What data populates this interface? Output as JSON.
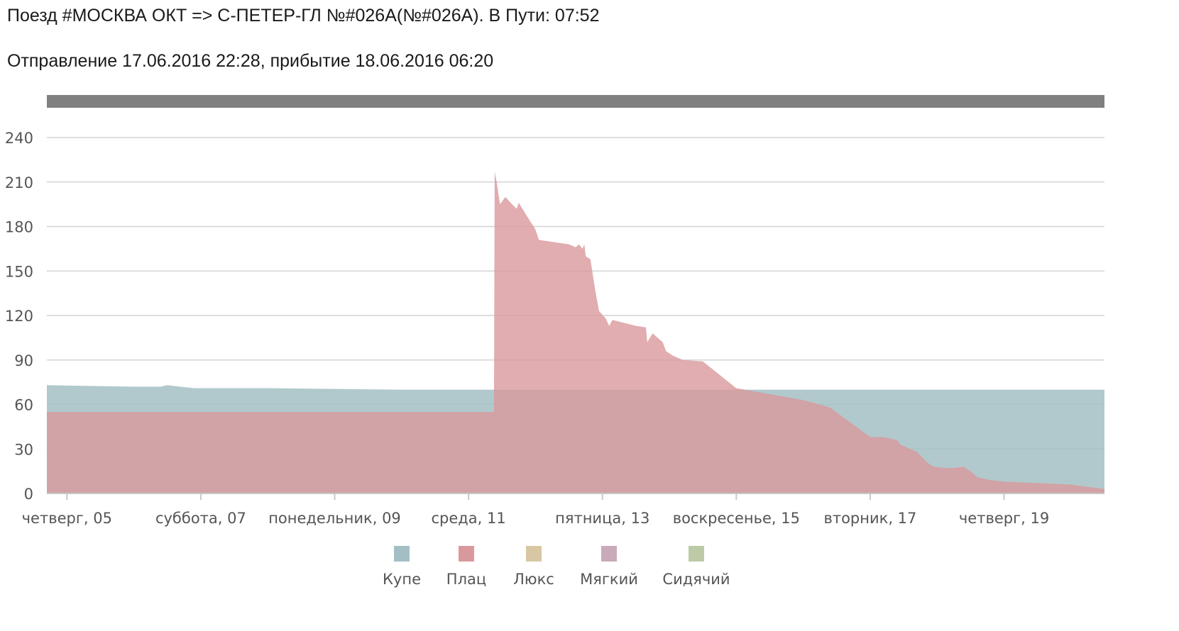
{
  "header": {
    "train_line": "Поезд #МОСКВА ОКТ => С-ПЕТЕР-ГЛ №#026А(№#026А). В Пути: 07:52",
    "schedule_line": "Отправление 17.06.2016 22:28, прибытие 18.06.2016 06:20"
  },
  "chart_data": {
    "type": "area",
    "x_unit": "days",
    "xlim": [
      4.7,
      20.5
    ],
    "ylim": [
      0,
      250
    ],
    "y_ticks": [
      0,
      30,
      60,
      90,
      120,
      150,
      180,
      210,
      240
    ],
    "x_ticks": [
      {
        "x": 5,
        "label": "четверг, 05"
      },
      {
        "x": 7,
        "label": "суббота, 07"
      },
      {
        "x": 9,
        "label": "понедельник, 09"
      },
      {
        "x": 11,
        "label": "среда, 11"
      },
      {
        "x": 13,
        "label": "пятница, 13"
      },
      {
        "x": 15,
        "label": "воскресенье, 15"
      },
      {
        "x": 17,
        "label": "вторник, 17"
      },
      {
        "x": 19,
        "label": "четверг, 19"
      }
    ],
    "grid": true,
    "legend_position": "bottom",
    "series": [
      {
        "name": "Купе",
        "color": "#a3bfc4",
        "points": [
          [
            4.7,
            73
          ],
          [
            6.0,
            72
          ],
          [
            6.4,
            72
          ],
          [
            6.5,
            73
          ],
          [
            6.9,
            71
          ],
          [
            8.0,
            71
          ],
          [
            10.0,
            70
          ],
          [
            11.4,
            70
          ],
          [
            12.0,
            70
          ],
          [
            13.0,
            70
          ],
          [
            14.0,
            70
          ],
          [
            15.0,
            70
          ],
          [
            16.0,
            70
          ],
          [
            17.0,
            70
          ],
          [
            18.0,
            70
          ],
          [
            19.0,
            70
          ],
          [
            20.5,
            70
          ]
        ]
      },
      {
        "name": "Плац",
        "color": "#d9999c",
        "points": [
          [
            4.7,
            55
          ],
          [
            11.38,
            55
          ],
          [
            11.39,
            217
          ],
          [
            11.42,
            210
          ],
          [
            11.47,
            195
          ],
          [
            11.55,
            200
          ],
          [
            11.65,
            195
          ],
          [
            11.72,
            192
          ],
          [
            11.75,
            196
          ],
          [
            11.9,
            185
          ],
          [
            12.0,
            178
          ],
          [
            12.05,
            171
          ],
          [
            12.5,
            168
          ],
          [
            12.6,
            166
          ],
          [
            12.65,
            168
          ],
          [
            12.7,
            165
          ],
          [
            12.73,
            168
          ],
          [
            12.75,
            160
          ],
          [
            12.82,
            158
          ],
          [
            12.9,
            135
          ],
          [
            12.95,
            123
          ],
          [
            13.05,
            118
          ],
          [
            13.1,
            113
          ],
          [
            13.15,
            117
          ],
          [
            13.5,
            113
          ],
          [
            13.65,
            112
          ],
          [
            13.67,
            102
          ],
          [
            13.75,
            108
          ],
          [
            13.85,
            104
          ],
          [
            13.9,
            102
          ],
          [
            13.95,
            96
          ],
          [
            14.05,
            93
          ],
          [
            14.2,
            90
          ],
          [
            14.5,
            89
          ],
          [
            15.0,
            71
          ],
          [
            16.0,
            63
          ],
          [
            16.4,
            58
          ],
          [
            17.0,
            38
          ],
          [
            17.2,
            38
          ],
          [
            17.4,
            36
          ],
          [
            17.45,
            33
          ],
          [
            17.7,
            28
          ],
          [
            17.85,
            21
          ],
          [
            17.95,
            18
          ],
          [
            18.2,
            17
          ],
          [
            18.4,
            18
          ],
          [
            18.5,
            15
          ],
          [
            18.6,
            11
          ],
          [
            18.8,
            9
          ],
          [
            19.0,
            8
          ],
          [
            19.5,
            7
          ],
          [
            20.0,
            6
          ],
          [
            20.5,
            3
          ]
        ]
      },
      {
        "name": "Люкс",
        "color": "#d9c7a3",
        "points": []
      },
      {
        "name": "Мягкий",
        "color": "#c8aab8",
        "points": []
      },
      {
        "name": "Сидячий",
        "color": "#bccba6",
        "points": []
      }
    ]
  }
}
